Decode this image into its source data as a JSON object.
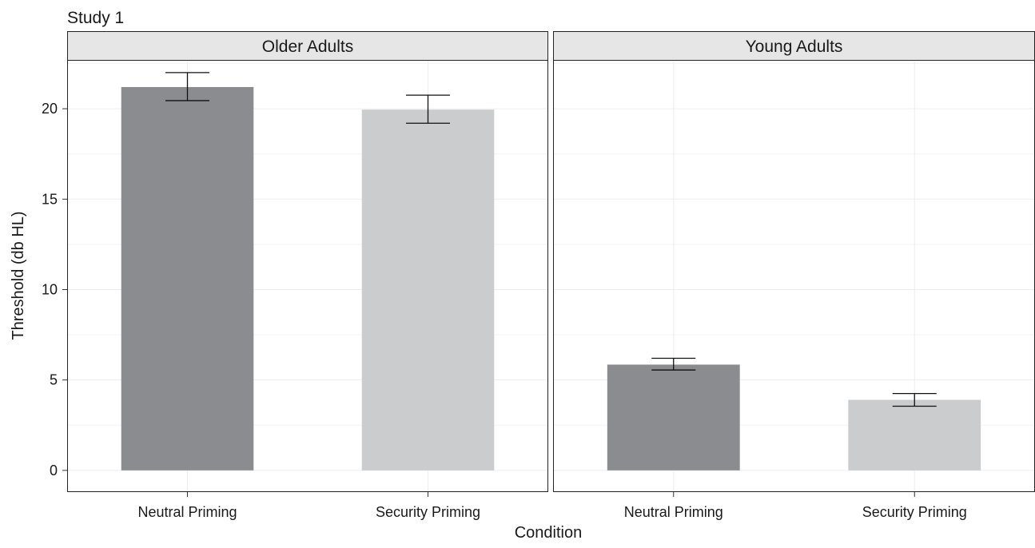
{
  "chart_data": {
    "type": "bar",
    "title": "Study 1",
    "xlabel": "Condition",
    "ylabel": "Threshold (db HL)",
    "ylim": [
      -1.2,
      22.7
    ],
    "yticks": [
      0,
      5,
      10,
      15,
      20
    ],
    "categories": [
      "Neutral Priming",
      "Security Priming"
    ],
    "grid": true,
    "panels": [
      {
        "name": "Older Adults",
        "values": [
          21.2,
          19.95
        ],
        "errors": [
          [
            20.45,
            22.0
          ],
          [
            19.2,
            20.75
          ]
        ]
      },
      {
        "name": "Young Adults",
        "values": [
          5.85,
          3.9
        ],
        "errors": [
          [
            5.55,
            6.2
          ],
          [
            3.55,
            4.25
          ]
        ]
      }
    ],
    "colors": {
      "Neutral Priming": "#8b8c8f",
      "Security Priming": "#cbcccd",
      "strip_bg": "#e6e6e6",
      "grid": "#ededed"
    }
  }
}
